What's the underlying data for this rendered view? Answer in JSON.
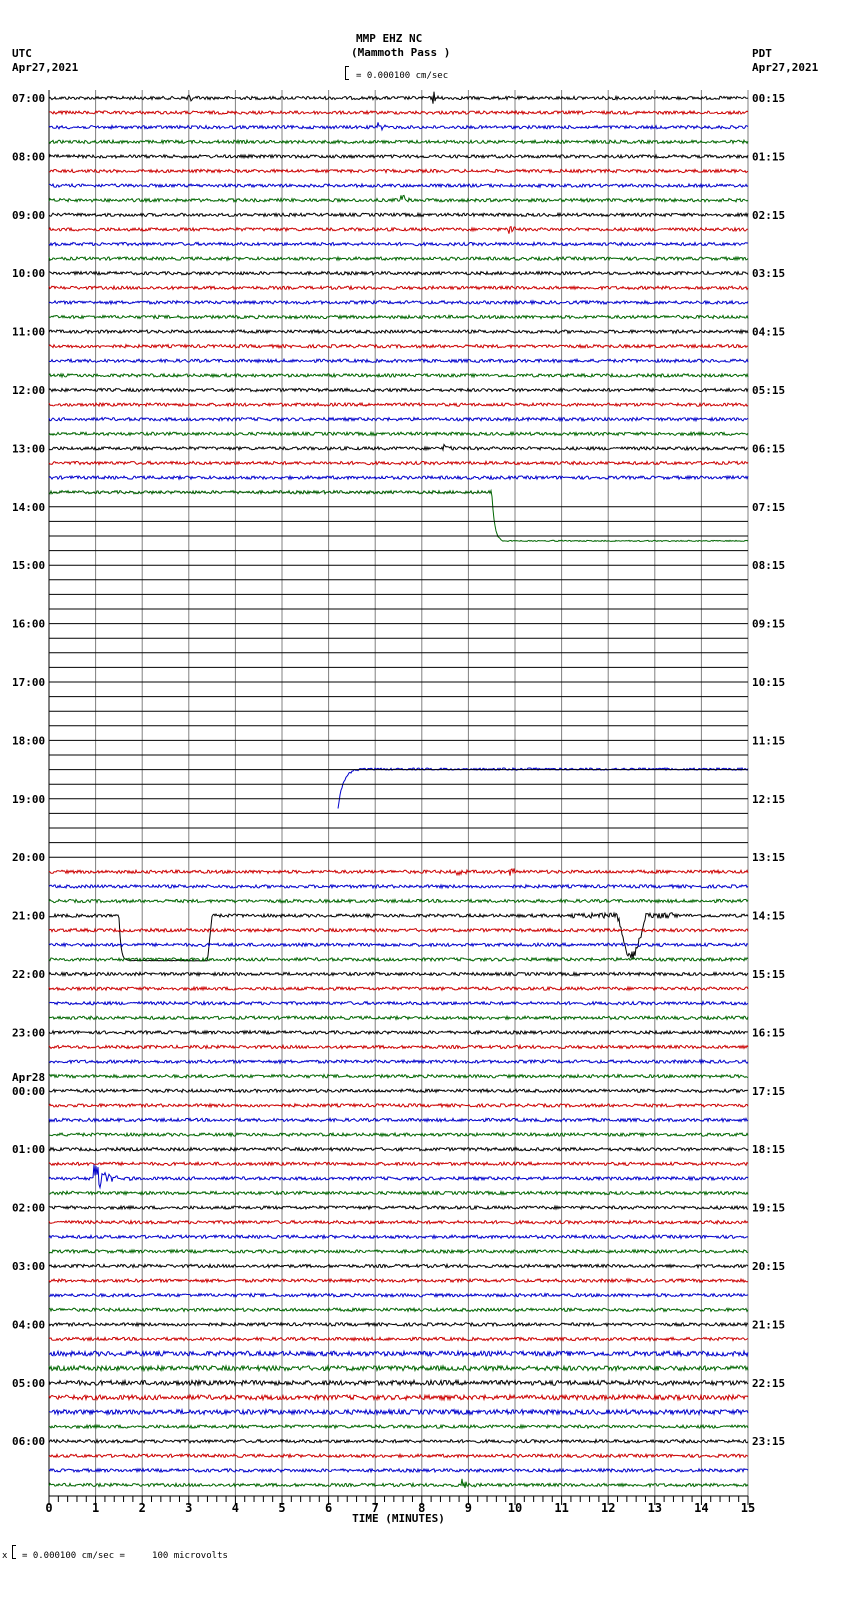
{
  "header": {
    "station": "MMP EHZ NC",
    "location": "(Mammoth Pass )",
    "scale_text": "= 0.000100 cm/sec",
    "left_tz": "UTC",
    "left_date": "Apr27,2021",
    "right_tz": "PDT",
    "right_date": "Apr27,2021"
  },
  "footer": {
    "scale_note": "= 0.000100 cm/sec =     100 microvolts",
    "scale_prefix": "x"
  },
  "colors": {
    "trace_cycle": [
      "#000000",
      "#cc0000",
      "#0000cc",
      "#006600"
    ],
    "grid": "#808080",
    "flat_line": "#000000"
  },
  "chart_data": {
    "type": "line",
    "title": "MMP EHZ NC (Mammoth Pass )",
    "subtitle": "= 0.000100 cm/sec",
    "xlabel": "TIME (MINUTES)",
    "ylabel": "",
    "xlim": [
      0,
      15
    ],
    "x_ticks": [
      "0",
      "1",
      "2",
      "3",
      "4",
      "5",
      "6",
      "7",
      "8",
      "9",
      "10",
      "11",
      "12",
      "13",
      "14",
      "15"
    ],
    "grid": true,
    "rows_per_hour": 4,
    "row_minutes": 15,
    "left_labels": [
      {
        "row": 0,
        "text": "07:00"
      },
      {
        "row": 4,
        "text": "08:00"
      },
      {
        "row": 8,
        "text": "09:00"
      },
      {
        "row": 12,
        "text": "10:00"
      },
      {
        "row": 16,
        "text": "11:00"
      },
      {
        "row": 20,
        "text": "12:00"
      },
      {
        "row": 24,
        "text": "13:00"
      },
      {
        "row": 28,
        "text": "14:00"
      },
      {
        "row": 32,
        "text": "15:00"
      },
      {
        "row": 36,
        "text": "16:00"
      },
      {
        "row": 40,
        "text": "17:00"
      },
      {
        "row": 44,
        "text": "18:00"
      },
      {
        "row": 48,
        "text": "19:00"
      },
      {
        "row": 52,
        "text": "20:00"
      },
      {
        "row": 56,
        "text": "21:00"
      },
      {
        "row": 60,
        "text": "22:00"
      },
      {
        "row": 64,
        "text": "23:00"
      },
      {
        "row": 68,
        "text": "00:00",
        "date": "Apr28"
      },
      {
        "row": 72,
        "text": "01:00"
      },
      {
        "row": 76,
        "text": "02:00"
      },
      {
        "row": 80,
        "text": "03:00"
      },
      {
        "row": 84,
        "text": "04:00"
      },
      {
        "row": 88,
        "text": "05:00"
      },
      {
        "row": 92,
        "text": "06:00"
      }
    ],
    "right_labels": [
      "00:15",
      "01:15",
      "02:15",
      "03:15",
      "04:15",
      "05:15",
      "06:15",
      "07:15",
      "08:15",
      "09:15",
      "10:15",
      "11:15",
      "12:15",
      "13:15",
      "14:15",
      "15:15",
      "16:15",
      "17:15",
      "18:15",
      "19:15",
      "20:15",
      "21:15",
      "22:15",
      "23:15"
    ],
    "total_rows": 96,
    "flat_rows": [
      [
        27,
        53
      ]
    ],
    "special_rows": [
      {
        "row": 27,
        "note": "green trace, drops one row at ~9.5 min and stays flat to end",
        "step_min": 9.5,
        "level_change_rows": 3.4
      },
      {
        "row": 46,
        "note": "red trace appears at ~6.2 min, rising from below",
        "start_min": 6.2
      },
      {
        "row": 56,
        "note": "black trace box-step down 1.5–3.5 min and dips ~12.2–12.8 min"
      }
    ],
    "events": [
      {
        "row": 0,
        "minute": 3.0,
        "amp": 6
      },
      {
        "row": 0,
        "minute": 8.25,
        "amp": 7
      },
      {
        "row": 2,
        "minute": 7.1,
        "amp": 5
      },
      {
        "row": 7,
        "minute": 7.6,
        "amp": 5
      },
      {
        "row": 9,
        "minute": 9.9,
        "amp": 5
      },
      {
        "row": 24,
        "minute": 8.5,
        "amp": 6
      },
      {
        "row": 53,
        "minute": 8.8,
        "amp": 4
      },
      {
        "row": 53,
        "minute": 9.9,
        "amp": 5
      },
      {
        "row": 74,
        "minute": 1.0,
        "amp": 18,
        "note": "local earthquake"
      },
      {
        "row": 95,
        "minute": 8.9,
        "amp": 6
      }
    ]
  }
}
